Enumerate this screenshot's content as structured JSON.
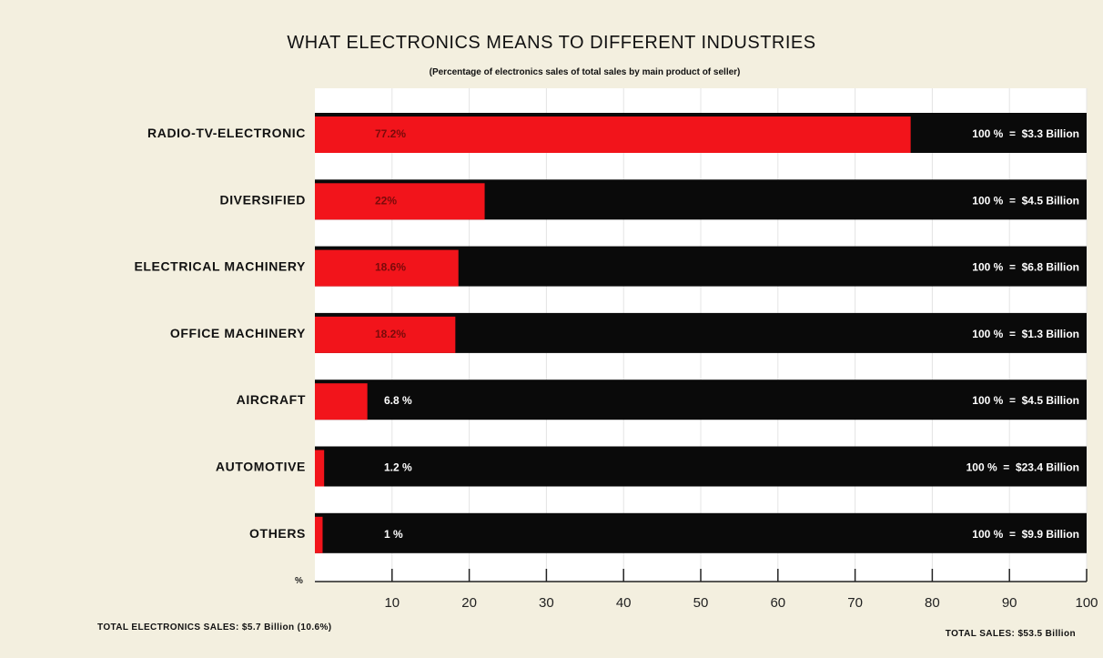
{
  "chart_data": {
    "type": "bar",
    "orientation": "horizontal",
    "title": "WHAT ELECTRONICS MEANS TO DIFFERENT INDUSTRIES",
    "subtitle": "(Percentage of electronics sales of total sales by main product of seller)",
    "categories": [
      "RADIO-TV-ELECTRONIC",
      "DIVERSIFIED",
      "ELECTRICAL MACHINERY",
      "OFFICE MACHINERY",
      "AIRCRAFT",
      "AUTOMOTIVE",
      "OTHERS"
    ],
    "values": [
      77.2,
      22,
      18.6,
      18.2,
      6.8,
      1.2,
      1
    ],
    "value_labels": [
      "77.2%",
      "22%",
      "18.6%",
      "18.2%",
      "6.8 %",
      "1.2 %",
      "1 %"
    ],
    "total_labels": [
      "100 %  =  $3.3 Billion",
      "100 %  =  $4.5 Billion",
      "100 %  =  $6.8 Billion",
      "100 %  =  $1.3 Billion",
      "100 %  =  $4.5 Billion",
      "100 %  =  $23.4 Billion",
      "100 %  =  $9.9 Billion"
    ],
    "xlim": [
      0,
      100
    ],
    "xticks": [
      10,
      20,
      30,
      40,
      50,
      60,
      70,
      80,
      90,
      100
    ],
    "axis_unit_label": "%",
    "colors": {
      "electronics": "#f2141b",
      "total": "#0a0a0a"
    },
    "footer_left": "TOTAL ELECTRONICS SALES: $5.7 Billion (10.6%)",
    "footer_right": "TOTAL SALES: $53.5 Billion"
  }
}
